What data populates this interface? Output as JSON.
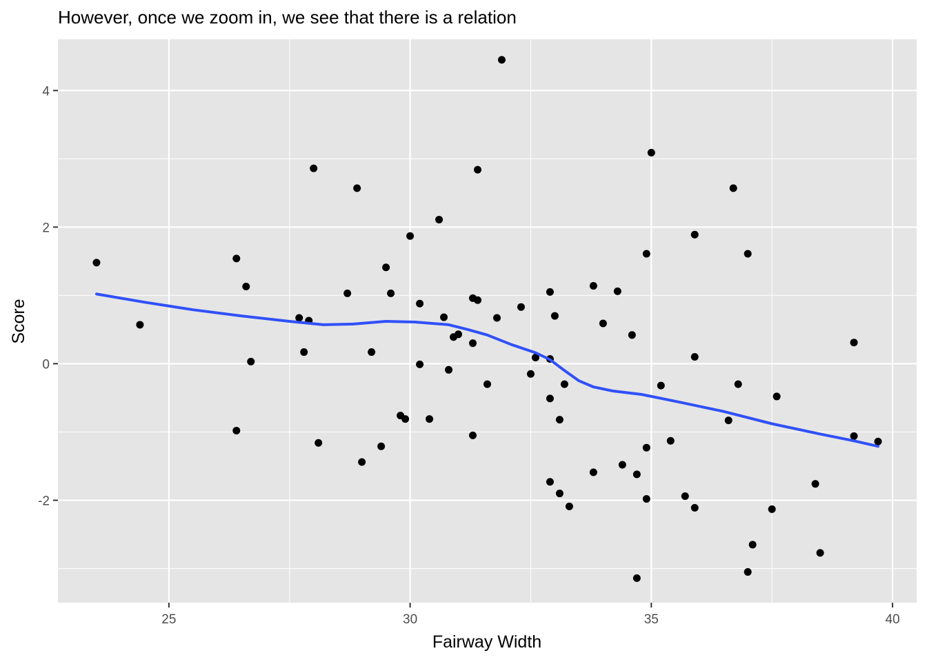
{
  "chart_data": {
    "type": "scatter",
    "title": "However, once we zoom in, we see that there is a relation",
    "xlabel": "Fairway Width",
    "ylabel": "Score",
    "xlim": [
      22.7,
      40.5
    ],
    "ylim": [
      -3.5,
      4.75
    ],
    "xticks": [
      25,
      30,
      35,
      40
    ],
    "yticks": [
      -2,
      0,
      2,
      4
    ],
    "grid": true,
    "colors": {
      "panel": "#e5e5e5",
      "grid": "#ffffff",
      "point": "#000000",
      "smooth": "#3050f8"
    },
    "points": [
      {
        "x": 23.5,
        "y": 1.48
      },
      {
        "x": 24.4,
        "y": 0.57
      },
      {
        "x": 26.4,
        "y": 1.54
      },
      {
        "x": 26.4,
        "y": -0.98
      },
      {
        "x": 26.6,
        "y": 1.13
      },
      {
        "x": 26.7,
        "y": 0.03
      },
      {
        "x": 27.7,
        "y": 0.67
      },
      {
        "x": 27.8,
        "y": 0.17
      },
      {
        "x": 27.9,
        "y": 0.63
      },
      {
        "x": 28.0,
        "y": 2.86
      },
      {
        "x": 28.1,
        "y": -1.16
      },
      {
        "x": 28.7,
        "y": 1.03
      },
      {
        "x": 28.9,
        "y": 2.57
      },
      {
        "x": 29.0,
        "y": -1.44
      },
      {
        "x": 29.2,
        "y": 0.17
      },
      {
        "x": 29.4,
        "y": -1.21
      },
      {
        "x": 29.5,
        "y": 1.41
      },
      {
        "x": 29.6,
        "y": 1.03
      },
      {
        "x": 29.8,
        "y": -0.76
      },
      {
        "x": 29.9,
        "y": -0.81
      },
      {
        "x": 30.0,
        "y": 1.87
      },
      {
        "x": 30.2,
        "y": 0.88
      },
      {
        "x": 30.2,
        "y": -0.01
      },
      {
        "x": 30.4,
        "y": -0.81
      },
      {
        "x": 30.6,
        "y": 2.11
      },
      {
        "x": 30.7,
        "y": 0.68
      },
      {
        "x": 30.8,
        "y": -0.09
      },
      {
        "x": 30.9,
        "y": 0.39
      },
      {
        "x": 31.0,
        "y": 0.43
      },
      {
        "x": 31.3,
        "y": 0.96
      },
      {
        "x": 31.3,
        "y": 0.3
      },
      {
        "x": 31.3,
        "y": -1.05
      },
      {
        "x": 31.4,
        "y": 0.93
      },
      {
        "x": 31.4,
        "y": 2.84
      },
      {
        "x": 31.6,
        "y": -0.3
      },
      {
        "x": 31.8,
        "y": 0.67
      },
      {
        "x": 31.9,
        "y": 4.45
      },
      {
        "x": 32.3,
        "y": 0.83
      },
      {
        "x": 32.5,
        "y": -0.15
      },
      {
        "x": 32.6,
        "y": 0.09
      },
      {
        "x": 32.9,
        "y": 1.05
      },
      {
        "x": 32.9,
        "y": 0.07
      },
      {
        "x": 32.9,
        "y": -0.51
      },
      {
        "x": 32.9,
        "y": -1.73
      },
      {
        "x": 33.0,
        "y": 0.7
      },
      {
        "x": 33.1,
        "y": -0.82
      },
      {
        "x": 33.1,
        "y": -1.9
      },
      {
        "x": 33.2,
        "y": -0.3
      },
      {
        "x": 33.3,
        "y": -2.09
      },
      {
        "x": 33.8,
        "y": 1.14
      },
      {
        "x": 33.8,
        "y": -1.59
      },
      {
        "x": 34.0,
        "y": 0.59
      },
      {
        "x": 34.3,
        "y": 1.06
      },
      {
        "x": 34.4,
        "y": -1.48
      },
      {
        "x": 34.6,
        "y": 0.42
      },
      {
        "x": 34.7,
        "y": -1.62
      },
      {
        "x": 34.7,
        "y": -3.14
      },
      {
        "x": 34.9,
        "y": 1.61
      },
      {
        "x": 34.9,
        "y": -1.23
      },
      {
        "x": 34.9,
        "y": -1.98
      },
      {
        "x": 35.0,
        "y": 3.09
      },
      {
        "x": 35.2,
        "y": -0.32
      },
      {
        "x": 35.4,
        "y": -1.13
      },
      {
        "x": 35.7,
        "y": -1.94
      },
      {
        "x": 35.9,
        "y": 1.89
      },
      {
        "x": 35.9,
        "y": 0.1
      },
      {
        "x": 35.9,
        "y": -2.11
      },
      {
        "x": 36.6,
        "y": -0.83
      },
      {
        "x": 36.7,
        "y": 2.57
      },
      {
        "x": 36.8,
        "y": -0.3
      },
      {
        "x": 37.0,
        "y": 1.61
      },
      {
        "x": 37.0,
        "y": -3.05
      },
      {
        "x": 37.1,
        "y": -2.65
      },
      {
        "x": 37.5,
        "y": -2.13
      },
      {
        "x": 37.6,
        "y": -0.48
      },
      {
        "x": 38.4,
        "y": -1.76
      },
      {
        "x": 38.5,
        "y": -2.77
      },
      {
        "x": 39.2,
        "y": 0.31
      },
      {
        "x": 39.2,
        "y": -1.06
      },
      {
        "x": 39.7,
        "y": -1.14
      }
    ],
    "smooth": [
      {
        "x": 23.5,
        "y": 1.02
      },
      {
        "x": 24.5,
        "y": 0.9
      },
      {
        "x": 25.5,
        "y": 0.79
      },
      {
        "x": 26.5,
        "y": 0.7
      },
      {
        "x": 27.5,
        "y": 0.62
      },
      {
        "x": 28.2,
        "y": 0.57
      },
      {
        "x": 28.8,
        "y": 0.58
      },
      {
        "x": 29.5,
        "y": 0.62
      },
      {
        "x": 30.1,
        "y": 0.61
      },
      {
        "x": 30.8,
        "y": 0.57
      },
      {
        "x": 31.2,
        "y": 0.5
      },
      {
        "x": 31.6,
        "y": 0.42
      },
      {
        "x": 32.1,
        "y": 0.28
      },
      {
        "x": 32.6,
        "y": 0.16
      },
      {
        "x": 32.9,
        "y": 0.06
      },
      {
        "x": 33.2,
        "y": -0.1
      },
      {
        "x": 33.5,
        "y": -0.25
      },
      {
        "x": 33.8,
        "y": -0.34
      },
      {
        "x": 34.2,
        "y": -0.4
      },
      {
        "x": 34.8,
        "y": -0.45
      },
      {
        "x": 35.5,
        "y": -0.55
      },
      {
        "x": 36.5,
        "y": -0.7
      },
      {
        "x": 37.5,
        "y": -0.88
      },
      {
        "x": 38.5,
        "y": -1.03
      },
      {
        "x": 39.2,
        "y": -1.13
      },
      {
        "x": 39.7,
        "y": -1.21
      }
    ]
  }
}
